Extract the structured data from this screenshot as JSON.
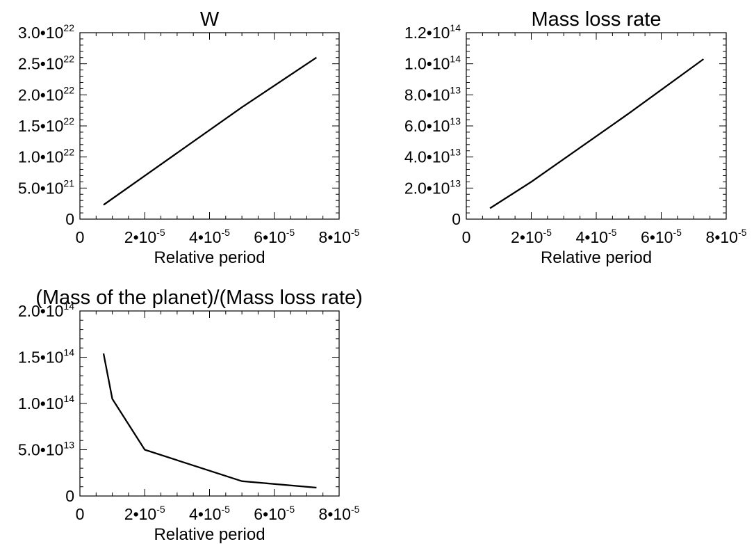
{
  "chart_data": [
    {
      "type": "line",
      "title": "W",
      "xlabel": "Relative period",
      "ylabel": "",
      "xlim": [
        0,
        8e-05
      ],
      "ylim": [
        0,
        3e+22
      ],
      "xticks": [
        {
          "value": 0,
          "mant": "0",
          "exp": ""
        },
        {
          "value": 2e-05,
          "mant": "2•10",
          "exp": "-5"
        },
        {
          "value": 4e-05,
          "mant": "4•10",
          "exp": "-5"
        },
        {
          "value": 6e-05,
          "mant": "6•10",
          "exp": "-5"
        },
        {
          "value": 8e-05,
          "mant": "8•10",
          "exp": "-5"
        }
      ],
      "yticks": [
        {
          "value": 0,
          "mant": "0",
          "exp": ""
        },
        {
          "value": 5e+21,
          "mant": "5.0•10",
          "exp": "21"
        },
        {
          "value": 1e+22,
          "mant": "1.0•10",
          "exp": "22"
        },
        {
          "value": 1.5e+22,
          "mant": "1.5•10",
          "exp": "22"
        },
        {
          "value": 2e+22,
          "mant": "2.0•10",
          "exp": "22"
        },
        {
          "value": 2.5e+22,
          "mant": "2.5•10",
          "exp": "22"
        },
        {
          "value": 3e+22,
          "mant": "3.0•10",
          "exp": "22"
        }
      ],
      "series": [
        {
          "x": [
            7.3e-06,
            5e-05,
            7.3e-05
          ],
          "y": [
            2.3e+21,
            1.8e+22,
            2.6e+22
          ]
        }
      ]
    },
    {
      "type": "line",
      "title": "Mass loss rate",
      "xlabel": "Relative period",
      "ylabel": "",
      "xlim": [
        0,
        8e-05
      ],
      "ylim": [
        0,
        120000000000000.0
      ],
      "xticks": [
        {
          "value": 0,
          "mant": "0",
          "exp": ""
        },
        {
          "value": 2e-05,
          "mant": "2•10",
          "exp": "-5"
        },
        {
          "value": 4e-05,
          "mant": "4•10",
          "exp": "-5"
        },
        {
          "value": 6e-05,
          "mant": "6•10",
          "exp": "-5"
        },
        {
          "value": 8e-05,
          "mant": "8•10",
          "exp": "-5"
        }
      ],
      "yticks": [
        {
          "value": 0,
          "mant": "0",
          "exp": ""
        },
        {
          "value": 20000000000000.0,
          "mant": "2.0•10",
          "exp": "13"
        },
        {
          "value": 40000000000000.0,
          "mant": "4.0•10",
          "exp": "13"
        },
        {
          "value": 60000000000000.0,
          "mant": "6.0•10",
          "exp": "13"
        },
        {
          "value": 80000000000000.0,
          "mant": "8.0•10",
          "exp": "13"
        },
        {
          "value": 100000000000000.0,
          "mant": "1.0•10",
          "exp": "14"
        },
        {
          "value": 120000000000000.0,
          "mant": "1.2•10",
          "exp": "14"
        }
      ],
      "series": [
        {
          "x": [
            7.3e-06,
            2e-05,
            5e-05,
            7.3e-05
          ],
          "y": [
            7000000000000.0,
            24000000000000.0,
            68000000000000.0,
            103000000000000.0
          ]
        }
      ]
    },
    {
      "type": "line",
      "title": "(Mass of the planet)/(Mass loss rate)",
      "xlabel": "Relative period",
      "ylabel": "",
      "xlim": [
        0,
        8e-05
      ],
      "ylim": [
        0,
        200000000000000.0
      ],
      "xticks": [
        {
          "value": 0,
          "mant": "0",
          "exp": ""
        },
        {
          "value": 2e-05,
          "mant": "2•10",
          "exp": "-5"
        },
        {
          "value": 4e-05,
          "mant": "4•10",
          "exp": "-5"
        },
        {
          "value": 6e-05,
          "mant": "6•10",
          "exp": "-5"
        },
        {
          "value": 8e-05,
          "mant": "8•10",
          "exp": "-5"
        }
      ],
      "yticks": [
        {
          "value": 0,
          "mant": "0",
          "exp": ""
        },
        {
          "value": 50000000000000.0,
          "mant": "5.0•10",
          "exp": "13"
        },
        {
          "value": 100000000000000.0,
          "mant": "1.0•10",
          "exp": "14"
        },
        {
          "value": 150000000000000.0,
          "mant": "1.5•10",
          "exp": "14"
        },
        {
          "value": 200000000000000.0,
          "mant": "2.0•10",
          "exp": "14"
        }
      ],
      "series": [
        {
          "x": [
            7.3e-06,
            1e-05,
            2e-05,
            5e-05,
            7.3e-05
          ],
          "y": [
            154000000000000.0,
            105000000000000.0,
            50000000000000.0,
            16000000000000.0,
            9000000000000.0
          ]
        }
      ]
    }
  ]
}
